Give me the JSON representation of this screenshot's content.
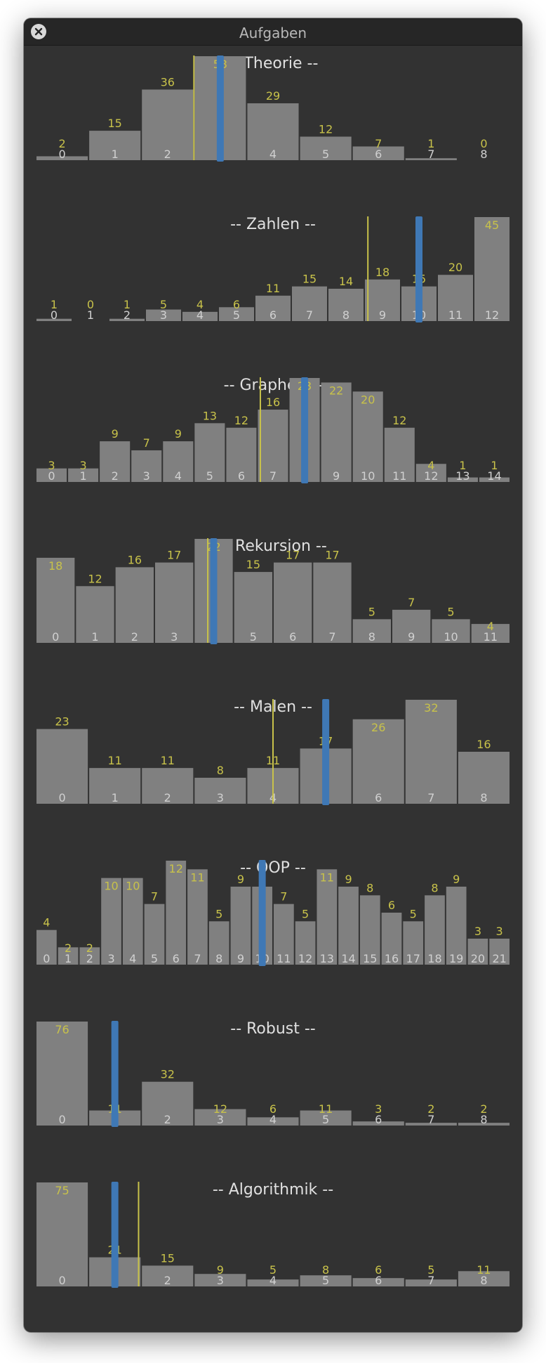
{
  "window": {
    "title": "Aufgaben",
    "close_icon": "close-icon"
  },
  "colors": {
    "background": "#323232",
    "bar": "#808080",
    "value_label": "#c8c24a",
    "category_label": "#d0d0d0",
    "yellow_marker": "#c8c24a",
    "blue_marker": "#3f78b5",
    "section_title": "#e0e0e0"
  },
  "chart_data": [
    {
      "type": "bar",
      "title": "-- Theorie --",
      "categories": [
        "0",
        "1",
        "2",
        "3",
        "4",
        "5",
        "6",
        "7",
        "8"
      ],
      "values": [
        2,
        15,
        36,
        53,
        29,
        12,
        7,
        1,
        0
      ],
      "yellow_marker_x": 2.5,
      "blue_marker_x": 3.0
    },
    {
      "type": "bar",
      "title": "-- Zahlen --",
      "categories": [
        "0",
        "1",
        "2",
        "3",
        "4",
        "5",
        "6",
        "7",
        "8",
        "9",
        "10",
        "11",
        "12"
      ],
      "values": [
        1,
        0,
        1,
        5,
        4,
        6,
        11,
        15,
        14,
        18,
        15,
        20,
        45
      ],
      "yellow_marker_x": 8.6,
      "blue_marker_x": 10.0
    },
    {
      "type": "bar",
      "title": "-- Graphen --",
      "categories": [
        "0",
        "1",
        "2",
        "3",
        "4",
        "5",
        "6",
        "7",
        "8",
        "9",
        "10",
        "11",
        "12",
        "13",
        "14"
      ],
      "values": [
        3,
        3,
        9,
        7,
        9,
        13,
        12,
        16,
        23,
        22,
        20,
        12,
        4,
        1,
        1
      ],
      "yellow_marker_x": 6.6,
      "blue_marker_x": 8.0
    },
    {
      "type": "bar",
      "title": "-- Rekursion --",
      "categories": [
        "0",
        "1",
        "2",
        "3",
        "4",
        "5",
        "6",
        "7",
        "8",
        "9",
        "10",
        "11"
      ],
      "values": [
        18,
        12,
        16,
        17,
        22,
        15,
        17,
        17,
        5,
        7,
        5,
        4
      ],
      "yellow_marker_x": 3.85,
      "blue_marker_x": 4.0
    },
    {
      "type": "bar",
      "title": "-- Malen --",
      "categories": [
        "0",
        "1",
        "2",
        "3",
        "4",
        "5",
        "6",
        "7",
        "8"
      ],
      "values": [
        23,
        11,
        11,
        8,
        11,
        17,
        26,
        32,
        16
      ],
      "yellow_marker_x": 4.0,
      "blue_marker_x": 5.0
    },
    {
      "type": "bar",
      "title": "-- OOP --",
      "categories": [
        "0",
        "1",
        "2",
        "3",
        "4",
        "5",
        "6",
        "7",
        "8",
        "9",
        "10",
        "11",
        "12",
        "13",
        "14",
        "15",
        "16",
        "17",
        "18",
        "19",
        "20",
        "21"
      ],
      "values": [
        4,
        2,
        2,
        10,
        10,
        7,
        12,
        11,
        5,
        9,
        9,
        7,
        5,
        11,
        9,
        8,
        6,
        5,
        8,
        9,
        3,
        3
      ],
      "yellow_marker_x": null,
      "blue_marker_x": 10.0
    },
    {
      "type": "bar",
      "title": "-- Robust --",
      "categories": [
        "0",
        "1",
        "2",
        "3",
        "4",
        "5",
        "6",
        "7",
        "8"
      ],
      "values": [
        76,
        11,
        32,
        12,
        6,
        11,
        3,
        2,
        2
      ],
      "yellow_marker_x": null,
      "blue_marker_x": 1.0
    },
    {
      "type": "bar",
      "title": "-- Algorithmik --",
      "categories": [
        "0",
        "1",
        "2",
        "3",
        "4",
        "5",
        "6",
        "7",
        "8"
      ],
      "values": [
        75,
        21,
        15,
        9,
        5,
        8,
        6,
        5,
        11
      ],
      "yellow_marker_x": 1.45,
      "blue_marker_x": 1.0
    }
  ]
}
